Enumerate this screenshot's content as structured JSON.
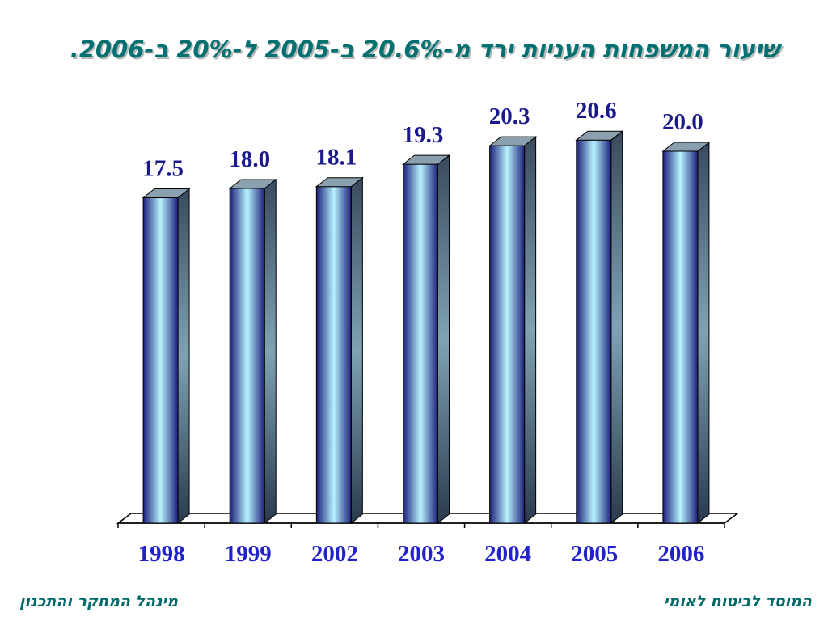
{
  "title": "שיעור המשפחות העניות ירד מ-20.6% ב-2005 ל-20% ב-2006.",
  "footer": {
    "left": "מינהל המחקר והתכנון",
    "right": "המוסד לביטוח לאומי"
  },
  "colors": {
    "bar_dark": "#1c1f7a",
    "bar_light": "#b6f3ff",
    "bar_side": "#2a3a4e",
    "bar_top": "#8aa0ae",
    "value_label": "#1a1a8c",
    "category_label": "#2222cc",
    "title": "#007070"
  },
  "chart_data": {
    "type": "bar",
    "categories": [
      "1998",
      "1999",
      "2002",
      "2003",
      "2004",
      "2005",
      "2006"
    ],
    "values": [
      17.5,
      18.0,
      18.1,
      19.3,
      20.3,
      20.6,
      20.0
    ],
    "value_labels": [
      "17.5",
      "18.0",
      "18.1",
      "19.3",
      "20.3",
      "20.6",
      "20.0"
    ],
    "title": "שיעור המשפחות העניות ירד מ-20.6% ב-2005 ל-20% ב-2006.",
    "xlabel": "",
    "ylabel": "",
    "ylim": [
      0,
      24
    ],
    "grid": false,
    "legend": "none",
    "style": "3d-cylinder-bars"
  }
}
